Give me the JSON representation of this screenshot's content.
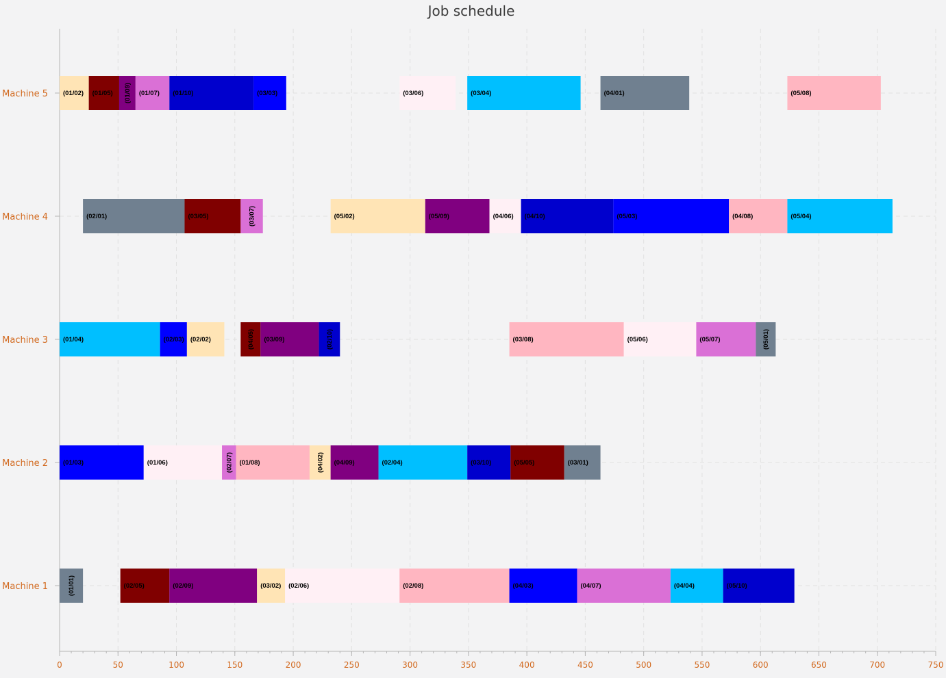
{
  "chart_data": {
    "type": "gantt",
    "title": "Job schedule",
    "xlim": [
      0,
      750
    ],
    "x_ticks": [
      0,
      50,
      100,
      150,
      200,
      250,
      300,
      350,
      400,
      450,
      500,
      550,
      600,
      650,
      700,
      750
    ],
    "grid": true,
    "machines": [
      "Machine 1",
      "Machine 2",
      "Machine 3",
      "Machine 4",
      "Machine 5"
    ],
    "tasks": [
      {
        "machine": "Machine 5",
        "label": "(01/02)",
        "start": 0,
        "end": 25,
        "color": "#FFE4B5",
        "rotated": false
      },
      {
        "machine": "Machine 5",
        "label": "(01/05)",
        "start": 25,
        "end": 51,
        "color": "#800000",
        "rotated": false
      },
      {
        "machine": "Machine 5",
        "label": "(01/09)",
        "start": 51,
        "end": 65,
        "color": "#800080",
        "rotated": true
      },
      {
        "machine": "Machine 5",
        "label": "(01/07)",
        "start": 65,
        "end": 94,
        "color": "#DA70D6",
        "rotated": false
      },
      {
        "machine": "Machine 5",
        "label": "(01/10)",
        "start": 94,
        "end": 166,
        "color": "#0000CD",
        "rotated": false
      },
      {
        "machine": "Machine 5",
        "label": "(03/03)",
        "start": 166,
        "end": 194,
        "color": "#0000FF",
        "rotated": false
      },
      {
        "machine": "Machine 5",
        "label": "(03/06)",
        "start": 291,
        "end": 339,
        "color": "#FFF0F5",
        "rotated": false
      },
      {
        "machine": "Machine 5",
        "label": "(03/04)",
        "start": 349,
        "end": 446,
        "color": "#00BFFF",
        "rotated": false
      },
      {
        "machine": "Machine 5",
        "label": "(04/01)",
        "start": 463,
        "end": 539,
        "color": "#708090",
        "rotated": false
      },
      {
        "machine": "Machine 5",
        "label": "(05/08)",
        "start": 623,
        "end": 703,
        "color": "#FFB6C1",
        "rotated": false
      },
      {
        "machine": "Machine 4",
        "label": "(02/01)",
        "start": 20,
        "end": 107,
        "color": "#708090",
        "rotated": false
      },
      {
        "machine": "Machine 4",
        "label": "(03/05)",
        "start": 107,
        "end": 155,
        "color": "#800000",
        "rotated": false
      },
      {
        "machine": "Machine 4",
        "label": "(03/07)",
        "start": 155,
        "end": 174,
        "color": "#DA70D6",
        "rotated": true
      },
      {
        "machine": "Machine 4",
        "label": "(05/02)",
        "start": 232,
        "end": 313,
        "color": "#FFE4B5",
        "rotated": false
      },
      {
        "machine": "Machine 4",
        "label": "(05/09)",
        "start": 313,
        "end": 368,
        "color": "#800080",
        "rotated": false
      },
      {
        "machine": "Machine 4",
        "label": "(04/06)",
        "start": 368,
        "end": 395,
        "color": "#FFF0F5",
        "rotated": false
      },
      {
        "machine": "Machine 4",
        "label": "(04/10)",
        "start": 395,
        "end": 474,
        "color": "#0000CD",
        "rotated": false
      },
      {
        "machine": "Machine 4",
        "label": "(05/03)",
        "start": 474,
        "end": 573,
        "color": "#0000FF",
        "rotated": false
      },
      {
        "machine": "Machine 4",
        "label": "(04/08)",
        "start": 573,
        "end": 623,
        "color": "#FFB6C1",
        "rotated": false
      },
      {
        "machine": "Machine 4",
        "label": "(05/04)",
        "start": 623,
        "end": 713,
        "color": "#00BFFF",
        "rotated": false
      },
      {
        "machine": "Machine 3",
        "label": "(01/04)",
        "start": 0,
        "end": 86,
        "color": "#00BFFF",
        "rotated": false
      },
      {
        "machine": "Machine 3",
        "label": "(02/03)",
        "start": 86,
        "end": 109,
        "color": "#0000FF",
        "rotated": false
      },
      {
        "machine": "Machine 3",
        "label": "(02/02)",
        "start": 109,
        "end": 141,
        "color": "#FFE4B5",
        "rotated": false
      },
      {
        "machine": "Machine 3",
        "label": "(04/05)",
        "start": 155,
        "end": 172,
        "color": "#800000",
        "rotated": true
      },
      {
        "machine": "Machine 3",
        "label": "(03/09)",
        "start": 172,
        "end": 222,
        "color": "#800080",
        "rotated": false
      },
      {
        "machine": "Machine 3",
        "label": "(02/10)",
        "start": 222,
        "end": 240,
        "color": "#0000CD",
        "rotated": true
      },
      {
        "machine": "Machine 3",
        "label": "(03/08)",
        "start": 385,
        "end": 483,
        "color": "#FFB6C1",
        "rotated": false
      },
      {
        "machine": "Machine 3",
        "label": "(05/06)",
        "start": 483,
        "end": 545,
        "color": "#FFF0F5",
        "rotated": false
      },
      {
        "machine": "Machine 3",
        "label": "(05/07)",
        "start": 545,
        "end": 596,
        "color": "#DA70D6",
        "rotated": false
      },
      {
        "machine": "Machine 3",
        "label": "(05/01)",
        "start": 596,
        "end": 613,
        "color": "#708090",
        "rotated": true
      },
      {
        "machine": "Machine 2",
        "label": "(01/03)",
        "start": 0,
        "end": 72,
        "color": "#0000FF",
        "rotated": false
      },
      {
        "machine": "Machine 2",
        "label": "(01/06)",
        "start": 72,
        "end": 139,
        "color": "#FFF0F5",
        "rotated": false
      },
      {
        "machine": "Machine 2",
        "label": "(02/07)",
        "start": 139,
        "end": 151,
        "color": "#DA70D6",
        "rotated": true
      },
      {
        "machine": "Machine 2",
        "label": "(01/08)",
        "start": 151,
        "end": 214,
        "color": "#FFB6C1",
        "rotated": false
      },
      {
        "machine": "Machine 2",
        "label": "(04/02)",
        "start": 214,
        "end": 232,
        "color": "#FFE4B5",
        "rotated": true
      },
      {
        "machine": "Machine 2",
        "label": "(04/09)",
        "start": 232,
        "end": 273,
        "color": "#800080",
        "rotated": false
      },
      {
        "machine": "Machine 2",
        "label": "(02/04)",
        "start": 273,
        "end": 349,
        "color": "#00BFFF",
        "rotated": false
      },
      {
        "machine": "Machine 2",
        "label": "(03/10)",
        "start": 349,
        "end": 386,
        "color": "#0000CD",
        "rotated": false
      },
      {
        "machine": "Machine 2",
        "label": "(05/05)",
        "start": 386,
        "end": 432,
        "color": "#800000",
        "rotated": false
      },
      {
        "machine": "Machine 2",
        "label": "(03/01)",
        "start": 432,
        "end": 463,
        "color": "#708090",
        "rotated": false
      },
      {
        "machine": "Machine 1",
        "label": "(01/01)",
        "start": 0,
        "end": 20,
        "color": "#708090",
        "rotated": true
      },
      {
        "machine": "Machine 1",
        "label": "(02/05)",
        "start": 52,
        "end": 94,
        "color": "#800000",
        "rotated": false
      },
      {
        "machine": "Machine 1",
        "label": "(02/09)",
        "start": 94,
        "end": 169,
        "color": "#800080",
        "rotated": false
      },
      {
        "machine": "Machine 1",
        "label": "(03/02)",
        "start": 169,
        "end": 193,
        "color": "#FFE4B5",
        "rotated": false
      },
      {
        "machine": "Machine 1",
        "label": "(02/06)",
        "start": 193,
        "end": 291,
        "color": "#FFF0F5",
        "rotated": false
      },
      {
        "machine": "Machine 1",
        "label": "(02/08)",
        "start": 291,
        "end": 385,
        "color": "#FFB6C1",
        "rotated": false
      },
      {
        "machine": "Machine 1",
        "label": "(04/03)",
        "start": 385,
        "end": 443,
        "color": "#0000FF",
        "rotated": false
      },
      {
        "machine": "Machine 1",
        "label": "(04/07)",
        "start": 443,
        "end": 523,
        "color": "#DA70D6",
        "rotated": false
      },
      {
        "machine": "Machine 1",
        "label": "(04/04)",
        "start": 523,
        "end": 568,
        "color": "#00BFFF",
        "rotated": false
      },
      {
        "machine": "Machine 1",
        "label": "(05/10)",
        "start": 568,
        "end": 629,
        "color": "#0000CD",
        "rotated": false
      }
    ]
  },
  "colors": {
    "axis_label": "#d2691e",
    "axis_line": "#b4b4b4",
    "grid": "#e0e0e0",
    "background": "#f3f3f4"
  }
}
